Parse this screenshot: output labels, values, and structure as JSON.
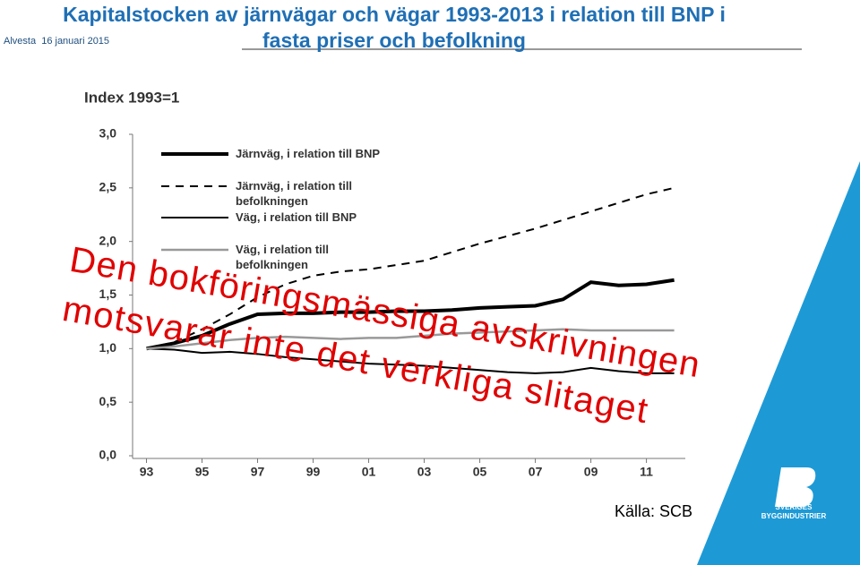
{
  "header": {
    "location": "Alvesta",
    "date": "16 januari 2015",
    "title": "Kapitalstocken av järnvägar och vägar 1993-2013 i relation till BNP i fasta priser och befolkning"
  },
  "chart_data": {
    "type": "line",
    "y_label": "Index 1993=1",
    "x": [
      1993,
      1994,
      1995,
      1996,
      1997,
      1998,
      1999,
      2000,
      2001,
      2002,
      2003,
      2004,
      2005,
      2006,
      2007,
      2008,
      2009,
      2010,
      2011,
      2012
    ],
    "xlim": [
      1992.5,
      2012.4
    ],
    "xticks": [
      {
        "value": 1993,
        "label": "93"
      },
      {
        "value": 1995,
        "label": "95"
      },
      {
        "value": 1997,
        "label": "97"
      },
      {
        "value": 1999,
        "label": "99"
      },
      {
        "value": 2001,
        "label": "01"
      },
      {
        "value": 2003,
        "label": "03"
      },
      {
        "value": 2005,
        "label": "05"
      },
      {
        "value": 2007,
        "label": "07"
      },
      {
        "value": 2009,
        "label": "09"
      },
      {
        "value": 2011,
        "label": "11"
      }
    ],
    "ylim": [
      0,
      3
    ],
    "yticks": [
      {
        "value": 0,
        "label": "0,0"
      },
      {
        "value": 0.5,
        "label": "0,5"
      },
      {
        "value": 1,
        "label": "1,0"
      },
      {
        "value": 1.5,
        "label": "1,5"
      },
      {
        "value": 2,
        "label": "2,0"
      },
      {
        "value": 2.5,
        "label": "2,5"
      },
      {
        "value": 3,
        "label": "3,0"
      }
    ],
    "series": [
      {
        "name": "Järnväg, i relation till BNP",
        "color": "#000000",
        "style": "solid",
        "line_width": 4,
        "values": [
          1.0,
          1.05,
          1.12,
          1.23,
          1.32,
          1.33,
          1.33,
          1.34,
          1.34,
          1.35,
          1.35,
          1.36,
          1.38,
          1.39,
          1.4,
          1.46,
          1.62,
          1.59,
          1.6,
          1.64
        ]
      },
      {
        "name": "Järnväg, i relation till befolkningen",
        "color": "#000000",
        "style": "dashed",
        "line_width": 2,
        "values": [
          1.0,
          1.06,
          1.18,
          1.32,
          1.48,
          1.6,
          1.68,
          1.72,
          1.74,
          1.78,
          1.82,
          1.9,
          1.98,
          2.05,
          2.12,
          2.2,
          2.28,
          2.36,
          2.44,
          2.5
        ]
      },
      {
        "name": "Väg, i relation till BNP",
        "color": "#000000",
        "style": "solid",
        "line_width": 2,
        "values": [
          1.0,
          0.99,
          0.96,
          0.97,
          0.95,
          0.92,
          0.9,
          0.88,
          0.86,
          0.85,
          0.84,
          0.82,
          0.8,
          0.78,
          0.77,
          0.78,
          0.82,
          0.79,
          0.77,
          0.77
        ]
      },
      {
        "name": "Väg, i relation till befolkningen",
        "color": "#999999",
        "style": "solid",
        "line_width": 2.5,
        "values": [
          1.0,
          1.02,
          1.05,
          1.08,
          1.1,
          1.11,
          1.1,
          1.09,
          1.1,
          1.1,
          1.12,
          1.14,
          1.15,
          1.16,
          1.17,
          1.18,
          1.17,
          1.17,
          1.17,
          1.17
        ]
      }
    ]
  },
  "annotations": [
    "Den bokföringsmässiga avskrivningen",
    "motsvarar inte det verkliga slitaget"
  ],
  "source": "Källa: SCB",
  "logo": {
    "line1": "SVERIGES",
    "line2": "BYGGINDUSTRIER"
  }
}
